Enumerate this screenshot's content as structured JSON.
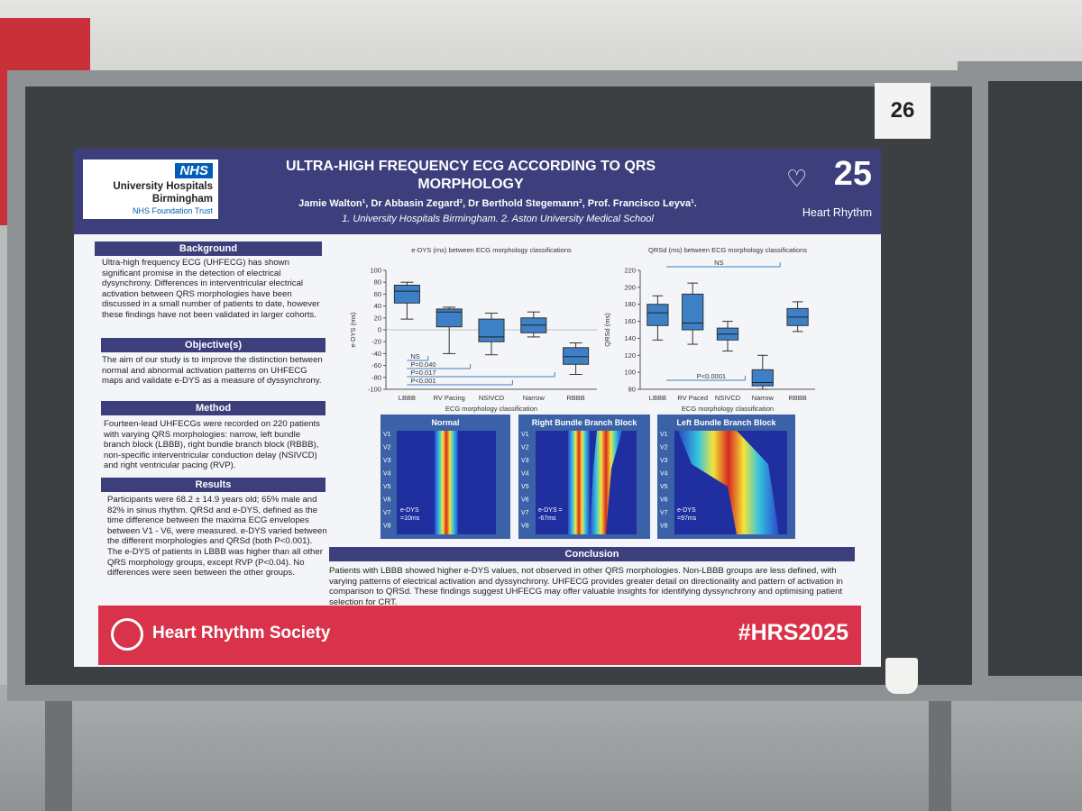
{
  "board_number": "26",
  "header": {
    "title": "ULTRA-HIGH FREQUENCY ECG ACCORDING TO QRS MORPHOLOGY",
    "authors": "Jamie Walton¹, Dr Abbasin Zegard², Dr Berthold Stegemann², Prof. Francisco Leyva¹.",
    "affiliations": "1. University Hospitals Birmingham. 2. Aston University Medical School",
    "nhs_logo": {
      "badge": "NHS",
      "line1": "University Hospitals",
      "line2": "Birmingham",
      "line3": "NHS Foundation Trust"
    },
    "hr_logo": {
      "number": "25",
      "text": "Heart Rhythm"
    }
  },
  "sections": {
    "background": {
      "heading": "Background",
      "text": "Ultra-high frequency ECG (UHFECG) has shown significant promise in the detection of electrical dysynchrony. Differences in interventricular electrical activation between QRS morphologies have been discussed in a small number of patients to date, however these findings have not been validated in larger cohorts."
    },
    "objective": {
      "heading": "Objective(s)",
      "text": "The aim of our study is to improve the distinction between normal and abnormal activation patterns on UHFECG maps and validate e-DYS as a measure of dyssynchrony."
    },
    "method": {
      "heading": "Method",
      "text": "Fourteen-lead UHFECGs were recorded on 220 patients with varying QRS morphologies: narrow, left bundle branch block (LBBB), right bundle branch block (RBBB), non-specific interventricular conduction delay (NSIVCD) and right ventricular pacing (RVP)."
    },
    "results": {
      "heading": "Results",
      "text": "Participants were 68.2 ± 14.9 years old; 65% male and 82% in sinus rhythm. QRSd and e-DYS, defined as the time difference between the maxima ECG envelopes between V1 - V6, were measured. e-DYS varied between the different morphologies and QRSd (both P<0.001). The e-DYS of patients in LBBB was higher than all other QRS morphology groups, except RVP (P<0.04). No differences were seen between the other groups."
    },
    "conclusion": {
      "heading": "Conclusion",
      "text": "Patients with LBBB showed higher e-DYS values, not observed in other QRS morphologies. Non-LBBB groups are less defined, with varying patterns of electrical activation and dyssynchrony. UHFECG provides greater detail on directionality and pattern of activation in comparison to QRSd. These findings suggest UHFECG may offer valuable insights for identifying dyssynchrony and optimising patient selection for CRT."
    }
  },
  "charts": [
    {
      "type": "box",
      "title": "e-DYS (ms) between ECG morphology classifications",
      "y_label": "e-DYS (ms)",
      "x_label": "ECG morphology classification",
      "categories": [
        "LBBB",
        "RV Pacing",
        "NSIVCD",
        "Narrow",
        "RBBB"
      ],
      "ylim": [
        -100,
        100
      ],
      "yticks": [
        -100,
        -80,
        -60,
        -40,
        -20,
        0,
        20,
        40,
        60,
        80,
        100
      ],
      "color": "#3d80c6",
      "boxes": [
        {
          "min": 18,
          "q1": 45,
          "median": 65,
          "q3": 75,
          "max": 80
        },
        {
          "min": -40,
          "q1": 5,
          "median": 30,
          "q3": 35,
          "max": 38
        },
        {
          "min": -42,
          "q1": -20,
          "median": -12,
          "q3": 18,
          "max": 28
        },
        {
          "min": -12,
          "q1": -5,
          "median": 8,
          "q3": 20,
          "max": 30
        },
        {
          "min": -75,
          "q1": -58,
          "median": -45,
          "q3": -30,
          "max": -22
        }
      ],
      "annotations": [
        "NS",
        "P=0.040",
        "P=0.017",
        "P<0.001"
      ]
    },
    {
      "type": "box",
      "title": "QRSd (ms) between ECG morphology classifications",
      "y_label": "QRSd (ms)",
      "x_label": "ECG morphology classification",
      "categories": [
        "LBBB",
        "RV Paced",
        "NSIVCD",
        "Narrow",
        "RBBB"
      ],
      "ylim": [
        80,
        220
      ],
      "yticks": [
        80,
        100,
        120,
        140,
        160,
        180,
        200,
        220
      ],
      "color": "#3d80c6",
      "boxes": [
        {
          "min": 138,
          "q1": 155,
          "median": 170,
          "q3": 180,
          "max": 190
        },
        {
          "min": 133,
          "q1": 150,
          "median": 158,
          "q3": 192,
          "max": 205
        },
        {
          "min": 125,
          "q1": 138,
          "median": 145,
          "q3": 152,
          "max": 160
        },
        {
          "min": 80,
          "q1": 84,
          "median": 88,
          "q3": 103,
          "max": 120
        },
        {
          "min": 148,
          "q1": 155,
          "median": 165,
          "q3": 175,
          "max": 183
        }
      ],
      "annotations": [
        "NS",
        "P<0.0001"
      ]
    }
  ],
  "heatmaps": {
    "leads": [
      "V1",
      "V2",
      "V3",
      "V4",
      "V5",
      "V6",
      "V7",
      "V8"
    ],
    "panels": [
      {
        "title": "Normal",
        "note": "e-DYS =10ms"
      },
      {
        "title": "Right Bundle Branch Block",
        "note": "e-DYS = -67ms"
      },
      {
        "title": "Left Bundle Branch Block",
        "note": "e-DYS =97ms"
      }
    ]
  },
  "footer": {
    "society": "Heart Rhythm Society",
    "hashtag": "#HRS2025"
  }
}
